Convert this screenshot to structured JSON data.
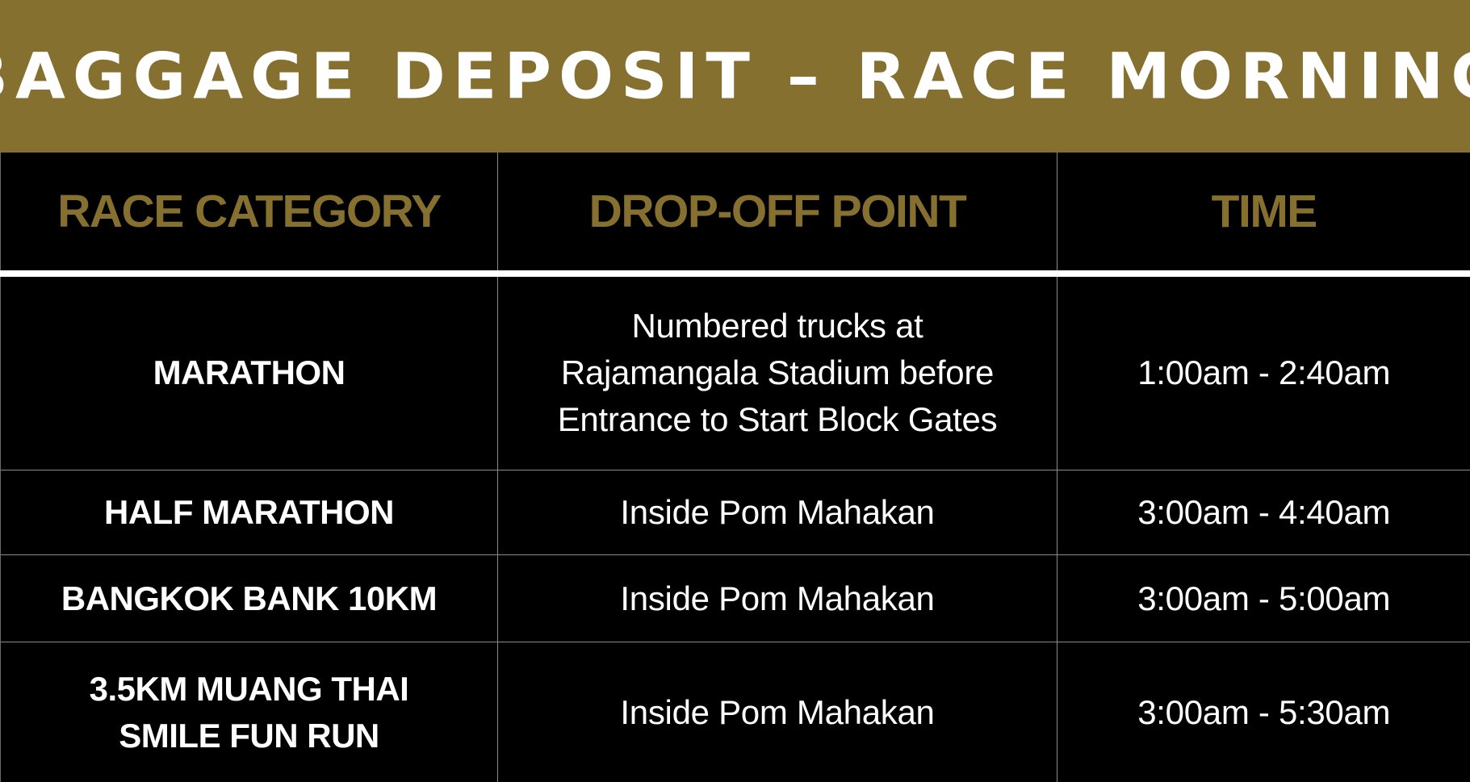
{
  "header": {
    "title": "BAGGAGE DEPOSIT – RACE MORNING"
  },
  "table": {
    "columns": [
      "RACE CATEGORY",
      "DROP-OFF POINT",
      "TIME"
    ],
    "rows": [
      {
        "category": [
          "MARATHON"
        ],
        "point": [
          "Numbered trucks at",
          "Rajamangala Stadium before",
          "Entrance to Start Block Gates"
        ],
        "time": "1:00am - 2:40am"
      },
      {
        "category": [
          "HALF MARATHON"
        ],
        "point": [
          "Inside Pom Mahakan"
        ],
        "time": "3:00am - 4:40am"
      },
      {
        "category": [
          "BANGKOK BANK 10KM"
        ],
        "point": [
          "Inside Pom Mahakan"
        ],
        "time": "3:00am - 5:00am"
      },
      {
        "category": [
          "3.5KM MUANG THAI",
          "SMILE FUN RUN"
        ],
        "point": [
          "Inside Pom Mahakan"
        ],
        "time": "3:00am - 5:30am"
      }
    ]
  },
  "colors": {
    "gold": "#857030",
    "background": "#000000",
    "text": "#ffffff",
    "rule": "#ffffff"
  }
}
